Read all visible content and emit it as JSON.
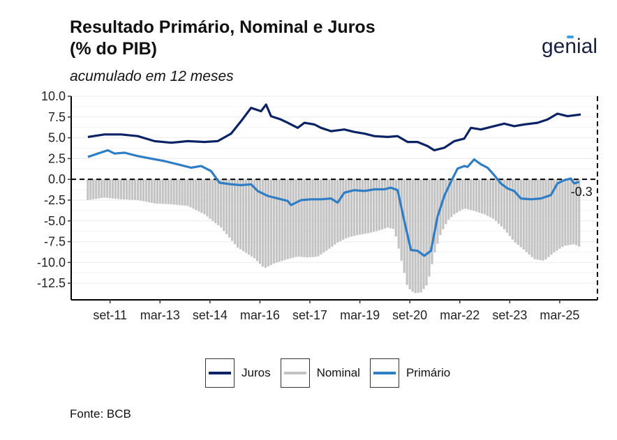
{
  "header": {
    "title_line1": "Resultado Primário, Nominal e Juros",
    "title_line2": "(% do PIB)",
    "subtitle": "acumulado em 12 meses",
    "brand": "genial"
  },
  "footer": {
    "source": "Fonte: BCB"
  },
  "colors": {
    "juros": "#0b2265",
    "nominal": "#c3c3c3",
    "primario": "#2f7dc4",
    "zero_line": "#000000"
  },
  "chart_data": {
    "type": "line",
    "title": "Resultado Primário, Nominal e Juros (% do PIB)",
    "subtitle": "acumulado em 12 meses",
    "xlabel": "",
    "ylabel": "",
    "ylim": [
      -14.5,
      10.0
    ],
    "xlim": [
      2010.5,
      2026.3
    ],
    "y_ticks": [
      10.0,
      7.5,
      5.0,
      2.5,
      0.0,
      -2.5,
      -5.0,
      -7.5,
      -10.0,
      -12.5
    ],
    "y_tick_labels": [
      "10.0",
      "7.5",
      "5.0",
      "2.5",
      "0.0",
      "-2.5",
      "-5.0",
      "-7.5",
      "-10.0",
      "-12.5"
    ],
    "x_ticks": [
      2011.667,
      2013.167,
      2014.667,
      2016.167,
      2017.667,
      2019.167,
      2020.667,
      2022.167,
      2023.667,
      2025.167
    ],
    "x_tick_labels": [
      "set-11",
      "mar-13",
      "set-14",
      "mar-16",
      "set-17",
      "mar-19",
      "set-20",
      "mar-22",
      "set-23",
      "mar-25"
    ],
    "grid": true,
    "legend_position": "bottom",
    "legend": [
      "Juros",
      "Nominal",
      "Primário"
    ],
    "annotation": {
      "text": "-0.3",
      "x": 2025.75,
      "y": -0.3
    },
    "series": [
      {
        "name": "Juros",
        "style": "line",
        "points": [
          [
            2011.0,
            5.1
          ],
          [
            2011.5,
            5.4
          ],
          [
            2012.0,
            5.4
          ],
          [
            2012.5,
            5.2
          ],
          [
            2013.0,
            4.6
          ],
          [
            2013.5,
            4.4
          ],
          [
            2014.0,
            4.6
          ],
          [
            2014.5,
            4.5
          ],
          [
            2014.9,
            4.6
          ],
          [
            2015.3,
            5.5
          ],
          [
            2015.6,
            7.0
          ],
          [
            2015.9,
            8.6
          ],
          [
            2016.2,
            8.2
          ],
          [
            2016.35,
            9.0
          ],
          [
            2016.5,
            7.6
          ],
          [
            2016.8,
            7.2
          ],
          [
            2017.0,
            6.8
          ],
          [
            2017.3,
            6.2
          ],
          [
            2017.5,
            6.8
          ],
          [
            2017.8,
            6.6
          ],
          [
            2018.0,
            6.2
          ],
          [
            2018.3,
            5.8
          ],
          [
            2018.7,
            6.0
          ],
          [
            2019.0,
            5.7
          ],
          [
            2019.3,
            5.5
          ],
          [
            2019.6,
            5.2
          ],
          [
            2020.0,
            5.1
          ],
          [
            2020.3,
            5.2
          ],
          [
            2020.6,
            4.5
          ],
          [
            2020.9,
            4.5
          ],
          [
            2021.2,
            4.0
          ],
          [
            2021.4,
            3.5
          ],
          [
            2021.7,
            3.8
          ],
          [
            2022.0,
            4.6
          ],
          [
            2022.3,
            4.9
          ],
          [
            2022.5,
            6.2
          ],
          [
            2022.8,
            6.0
          ],
          [
            2023.1,
            6.3
          ],
          [
            2023.5,
            6.7
          ],
          [
            2023.8,
            6.4
          ],
          [
            2024.1,
            6.6
          ],
          [
            2024.5,
            6.8
          ],
          [
            2024.8,
            7.2
          ],
          [
            2025.1,
            7.9
          ],
          [
            2025.4,
            7.6
          ],
          [
            2025.8,
            7.8
          ]
        ]
      },
      {
        "name": "Primário",
        "style": "line",
        "points": [
          [
            2011.0,
            2.7
          ],
          [
            2011.3,
            3.1
          ],
          [
            2011.6,
            3.5
          ],
          [
            2011.8,
            3.1
          ],
          [
            2012.1,
            3.2
          ],
          [
            2012.5,
            2.8
          ],
          [
            2012.9,
            2.5
          ],
          [
            2013.3,
            2.2
          ],
          [
            2013.7,
            1.8
          ],
          [
            2014.1,
            1.4
          ],
          [
            2014.4,
            1.6
          ],
          [
            2014.7,
            1.0
          ],
          [
            2014.95,
            -0.4
          ],
          [
            2015.3,
            -0.6
          ],
          [
            2015.6,
            -0.7
          ],
          [
            2015.9,
            -0.6
          ],
          [
            2016.1,
            -1.4
          ],
          [
            2016.4,
            -2.0
          ],
          [
            2016.7,
            -2.3
          ],
          [
            2017.0,
            -2.6
          ],
          [
            2017.1,
            -3.1
          ],
          [
            2017.4,
            -2.5
          ],
          [
            2017.7,
            -2.4
          ],
          [
            2018.0,
            -2.4
          ],
          [
            2018.3,
            -2.3
          ],
          [
            2018.5,
            -2.8
          ],
          [
            2018.7,
            -1.6
          ],
          [
            2019.0,
            -1.3
          ],
          [
            2019.3,
            -1.4
          ],
          [
            2019.6,
            -1.2
          ],
          [
            2019.9,
            -1.2
          ],
          [
            2020.1,
            -1.0
          ],
          [
            2020.3,
            -1.3
          ],
          [
            2020.5,
            -5.0
          ],
          [
            2020.7,
            -8.5
          ],
          [
            2020.9,
            -8.6
          ],
          [
            2021.1,
            -9.2
          ],
          [
            2021.3,
            -8.6
          ],
          [
            2021.5,
            -4.5
          ],
          [
            2021.7,
            -2.0
          ],
          [
            2021.9,
            -0.3
          ],
          [
            2022.1,
            1.3
          ],
          [
            2022.3,
            1.6
          ],
          [
            2022.4,
            1.5
          ],
          [
            2022.6,
            2.4
          ],
          [
            2022.8,
            1.8
          ],
          [
            2023.0,
            1.4
          ],
          [
            2023.2,
            0.5
          ],
          [
            2023.4,
            -0.5
          ],
          [
            2023.6,
            -1.1
          ],
          [
            2023.8,
            -1.4
          ],
          [
            2024.0,
            -2.3
          ],
          [
            2024.3,
            -2.4
          ],
          [
            2024.6,
            -2.3
          ],
          [
            2024.9,
            -1.9
          ],
          [
            2025.1,
            -0.5
          ],
          [
            2025.3,
            -0.1
          ],
          [
            2025.5,
            0.1
          ],
          [
            2025.6,
            -0.5
          ],
          [
            2025.75,
            -0.3
          ]
        ]
      },
      {
        "name": "Nominal",
        "style": "bar",
        "points": [
          [
            2011.0,
            -2.5
          ],
          [
            2011.5,
            -2.2
          ],
          [
            2012.0,
            -2.4
          ],
          [
            2012.5,
            -2.5
          ],
          [
            2013.0,
            -2.9
          ],
          [
            2013.5,
            -3.0
          ],
          [
            2014.0,
            -3.2
          ],
          [
            2014.5,
            -4.2
          ],
          [
            2015.0,
            -5.8
          ],
          [
            2015.5,
            -8.2
          ],
          [
            2016.0,
            -9.5
          ],
          [
            2016.3,
            -10.7
          ],
          [
            2016.6,
            -10.1
          ],
          [
            2017.0,
            -9.6
          ],
          [
            2017.3,
            -9.3
          ],
          [
            2017.6,
            -9.4
          ],
          [
            2017.9,
            -9.3
          ],
          [
            2018.2,
            -8.5
          ],
          [
            2018.5,
            -7.6
          ],
          [
            2018.8,
            -7.0
          ],
          [
            2019.1,
            -6.7
          ],
          [
            2019.4,
            -6.5
          ],
          [
            2019.7,
            -6.2
          ],
          [
            2020.0,
            -5.8
          ],
          [
            2020.2,
            -6.0
          ],
          [
            2020.4,
            -9.5
          ],
          [
            2020.6,
            -13.0
          ],
          [
            2020.8,
            -13.7
          ],
          [
            2021.0,
            -13.6
          ],
          [
            2021.2,
            -12.6
          ],
          [
            2021.4,
            -9.0
          ],
          [
            2021.6,
            -6.5
          ],
          [
            2021.8,
            -5.0
          ],
          [
            2022.0,
            -4.2
          ],
          [
            2022.3,
            -3.5
          ],
          [
            2022.6,
            -3.8
          ],
          [
            2022.9,
            -4.2
          ],
          [
            2023.2,
            -4.8
          ],
          [
            2023.5,
            -6.0
          ],
          [
            2023.8,
            -7.5
          ],
          [
            2024.1,
            -8.5
          ],
          [
            2024.4,
            -9.6
          ],
          [
            2024.7,
            -9.8
          ],
          [
            2025.0,
            -8.8
          ],
          [
            2025.3,
            -8.0
          ],
          [
            2025.6,
            -7.8
          ],
          [
            2025.8,
            -8.2
          ]
        ]
      }
    ]
  }
}
